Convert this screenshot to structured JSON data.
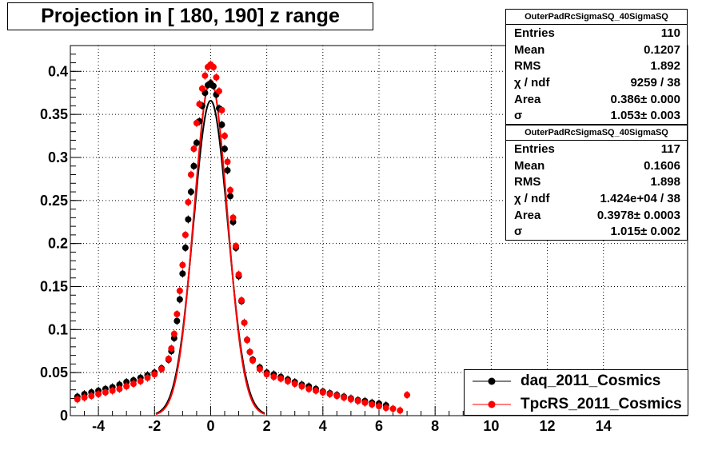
{
  "title": "Projection in [ 180, 190] z range",
  "stats": [
    {
      "name": "OuterPadRcSigmaSQ_40SigmaSQ",
      "rows": [
        {
          "k": "Entries",
          "v": "110"
        },
        {
          "k": "Mean",
          "v": "0.1207"
        },
        {
          "k": "RMS",
          "v": "1.892"
        },
        {
          "k": "χ  / ndf",
          "v": "9259 / 38"
        },
        {
          "k": "Area",
          "v": "0.386± 0.000"
        },
        {
          "k": "σ",
          "v": "1.053± 0.003"
        }
      ]
    },
    {
      "name": "OuterPadRcSigmaSQ_40SigmaSQ",
      "rows": [
        {
          "k": "Entries",
          "v": "117"
        },
        {
          "k": "Mean",
          "v": "0.1606"
        },
        {
          "k": "RMS",
          "v": "1.898"
        },
        {
          "k": "χ  / ndf",
          "v": "1.424e+04 / 38"
        },
        {
          "k": "Area",
          "v": "0.3978± 0.0003"
        },
        {
          "k": "σ",
          "v": "1.015± 0.002"
        }
      ]
    }
  ],
  "legend": [
    {
      "label": "daq_2011_Cosmics",
      "color": "#000000"
    },
    {
      "label": "TpcRS_2011_Cosmics",
      "color": "#ff0000"
    }
  ],
  "chart_data": {
    "type": "scatter",
    "title": "Projection in [ 180, 190] z range",
    "xlim": [
      -5,
      17
    ],
    "ylim": [
      0,
      0.43
    ],
    "grid": true,
    "legend_position": "bottom-right",
    "x_ticks": [
      -4,
      -2,
      0,
      2,
      4,
      6,
      8,
      10,
      12,
      14
    ],
    "y_ticks": [
      0,
      0.05,
      0.1,
      0.15,
      0.2,
      0.25,
      0.3,
      0.35,
      0.4
    ],
    "series": [
      {
        "name": "daq_2011_Cosmics",
        "color": "#000000",
        "fit_sigma": 1.053,
        "fit_peak": 0.366,
        "x": [
          -4.75,
          -4.5,
          -4.25,
          -4.0,
          -3.75,
          -3.5,
          -3.25,
          -3.0,
          -2.75,
          -2.5,
          -2.25,
          -2.0,
          -1.75,
          -1.5,
          -1.4,
          -1.3,
          -1.2,
          -1.1,
          -1.0,
          -0.9,
          -0.8,
          -0.7,
          -0.6,
          -0.5,
          -0.4,
          -0.3,
          -0.2,
          -0.1,
          0.0,
          0.1,
          0.2,
          0.3,
          0.4,
          0.5,
          0.6,
          0.7,
          0.8,
          0.9,
          1.0,
          1.1,
          1.2,
          1.3,
          1.4,
          1.5,
          1.75,
          2.0,
          2.25,
          2.5,
          2.75,
          3.0,
          3.25,
          3.5,
          3.75,
          4.0,
          4.25,
          4.5,
          4.75,
          5.0,
          5.25,
          5.5,
          5.75,
          6.0,
          6.25
        ],
        "y": [
          0.022,
          0.025,
          0.027,
          0.029,
          0.031,
          0.033,
          0.036,
          0.039,
          0.041,
          0.044,
          0.047,
          0.05,
          0.055,
          0.065,
          0.075,
          0.09,
          0.11,
          0.135,
          0.165,
          0.195,
          0.228,
          0.26,
          0.29,
          0.317,
          0.342,
          0.36,
          0.375,
          0.384,
          0.386,
          0.383,
          0.373,
          0.357,
          0.338,
          0.31,
          0.285,
          0.255,
          0.225,
          0.195,
          0.162,
          0.133,
          0.108,
          0.088,
          0.074,
          0.065,
          0.056,
          0.05,
          0.048,
          0.045,
          0.042,
          0.039,
          0.036,
          0.034,
          0.031,
          0.028,
          0.026,
          0.024,
          0.022,
          0.02,
          0.018,
          0.017,
          0.015,
          0.014,
          0.012
        ]
      },
      {
        "name": "TpcRS_2011_Cosmics",
        "color": "#ff0000",
        "fit_sigma": 1.015,
        "fit_peak": 0.39,
        "x": [
          -4.75,
          -4.5,
          -4.25,
          -4.0,
          -3.75,
          -3.5,
          -3.25,
          -3.0,
          -2.75,
          -2.5,
          -2.25,
          -2.0,
          -1.75,
          -1.5,
          -1.4,
          -1.3,
          -1.2,
          -1.1,
          -1.0,
          -0.9,
          -0.8,
          -0.7,
          -0.6,
          -0.5,
          -0.4,
          -0.3,
          -0.2,
          -0.1,
          0.0,
          0.1,
          0.2,
          0.3,
          0.4,
          0.5,
          0.6,
          0.7,
          0.8,
          0.9,
          1.0,
          1.1,
          1.2,
          1.3,
          1.4,
          1.5,
          1.75,
          2.0,
          2.25,
          2.5,
          2.75,
          3.0,
          3.25,
          3.5,
          3.75,
          4.0,
          4.25,
          4.5,
          4.75,
          5.0,
          5.25,
          5.5,
          5.75,
          6.0,
          6.25,
          6.5,
          6.75,
          7.0
        ],
        "y": [
          0.019,
          0.021,
          0.023,
          0.025,
          0.027,
          0.029,
          0.031,
          0.034,
          0.037,
          0.04,
          0.044,
          0.048,
          0.054,
          0.066,
          0.078,
          0.095,
          0.118,
          0.145,
          0.175,
          0.21,
          0.248,
          0.28,
          0.31,
          0.34,
          0.362,
          0.38,
          0.395,
          0.405,
          0.408,
          0.405,
          0.393,
          0.377,
          0.355,
          0.325,
          0.295,
          0.262,
          0.23,
          0.197,
          0.164,
          0.134,
          0.108,
          0.088,
          0.074,
          0.064,
          0.054,
          0.048,
          0.045,
          0.043,
          0.04,
          0.037,
          0.034,
          0.031,
          0.029,
          0.027,
          0.025,
          0.023,
          0.021,
          0.019,
          0.017,
          0.015,
          0.013,
          0.011,
          0.009,
          0.008,
          0.006,
          0.024
        ]
      }
    ]
  }
}
